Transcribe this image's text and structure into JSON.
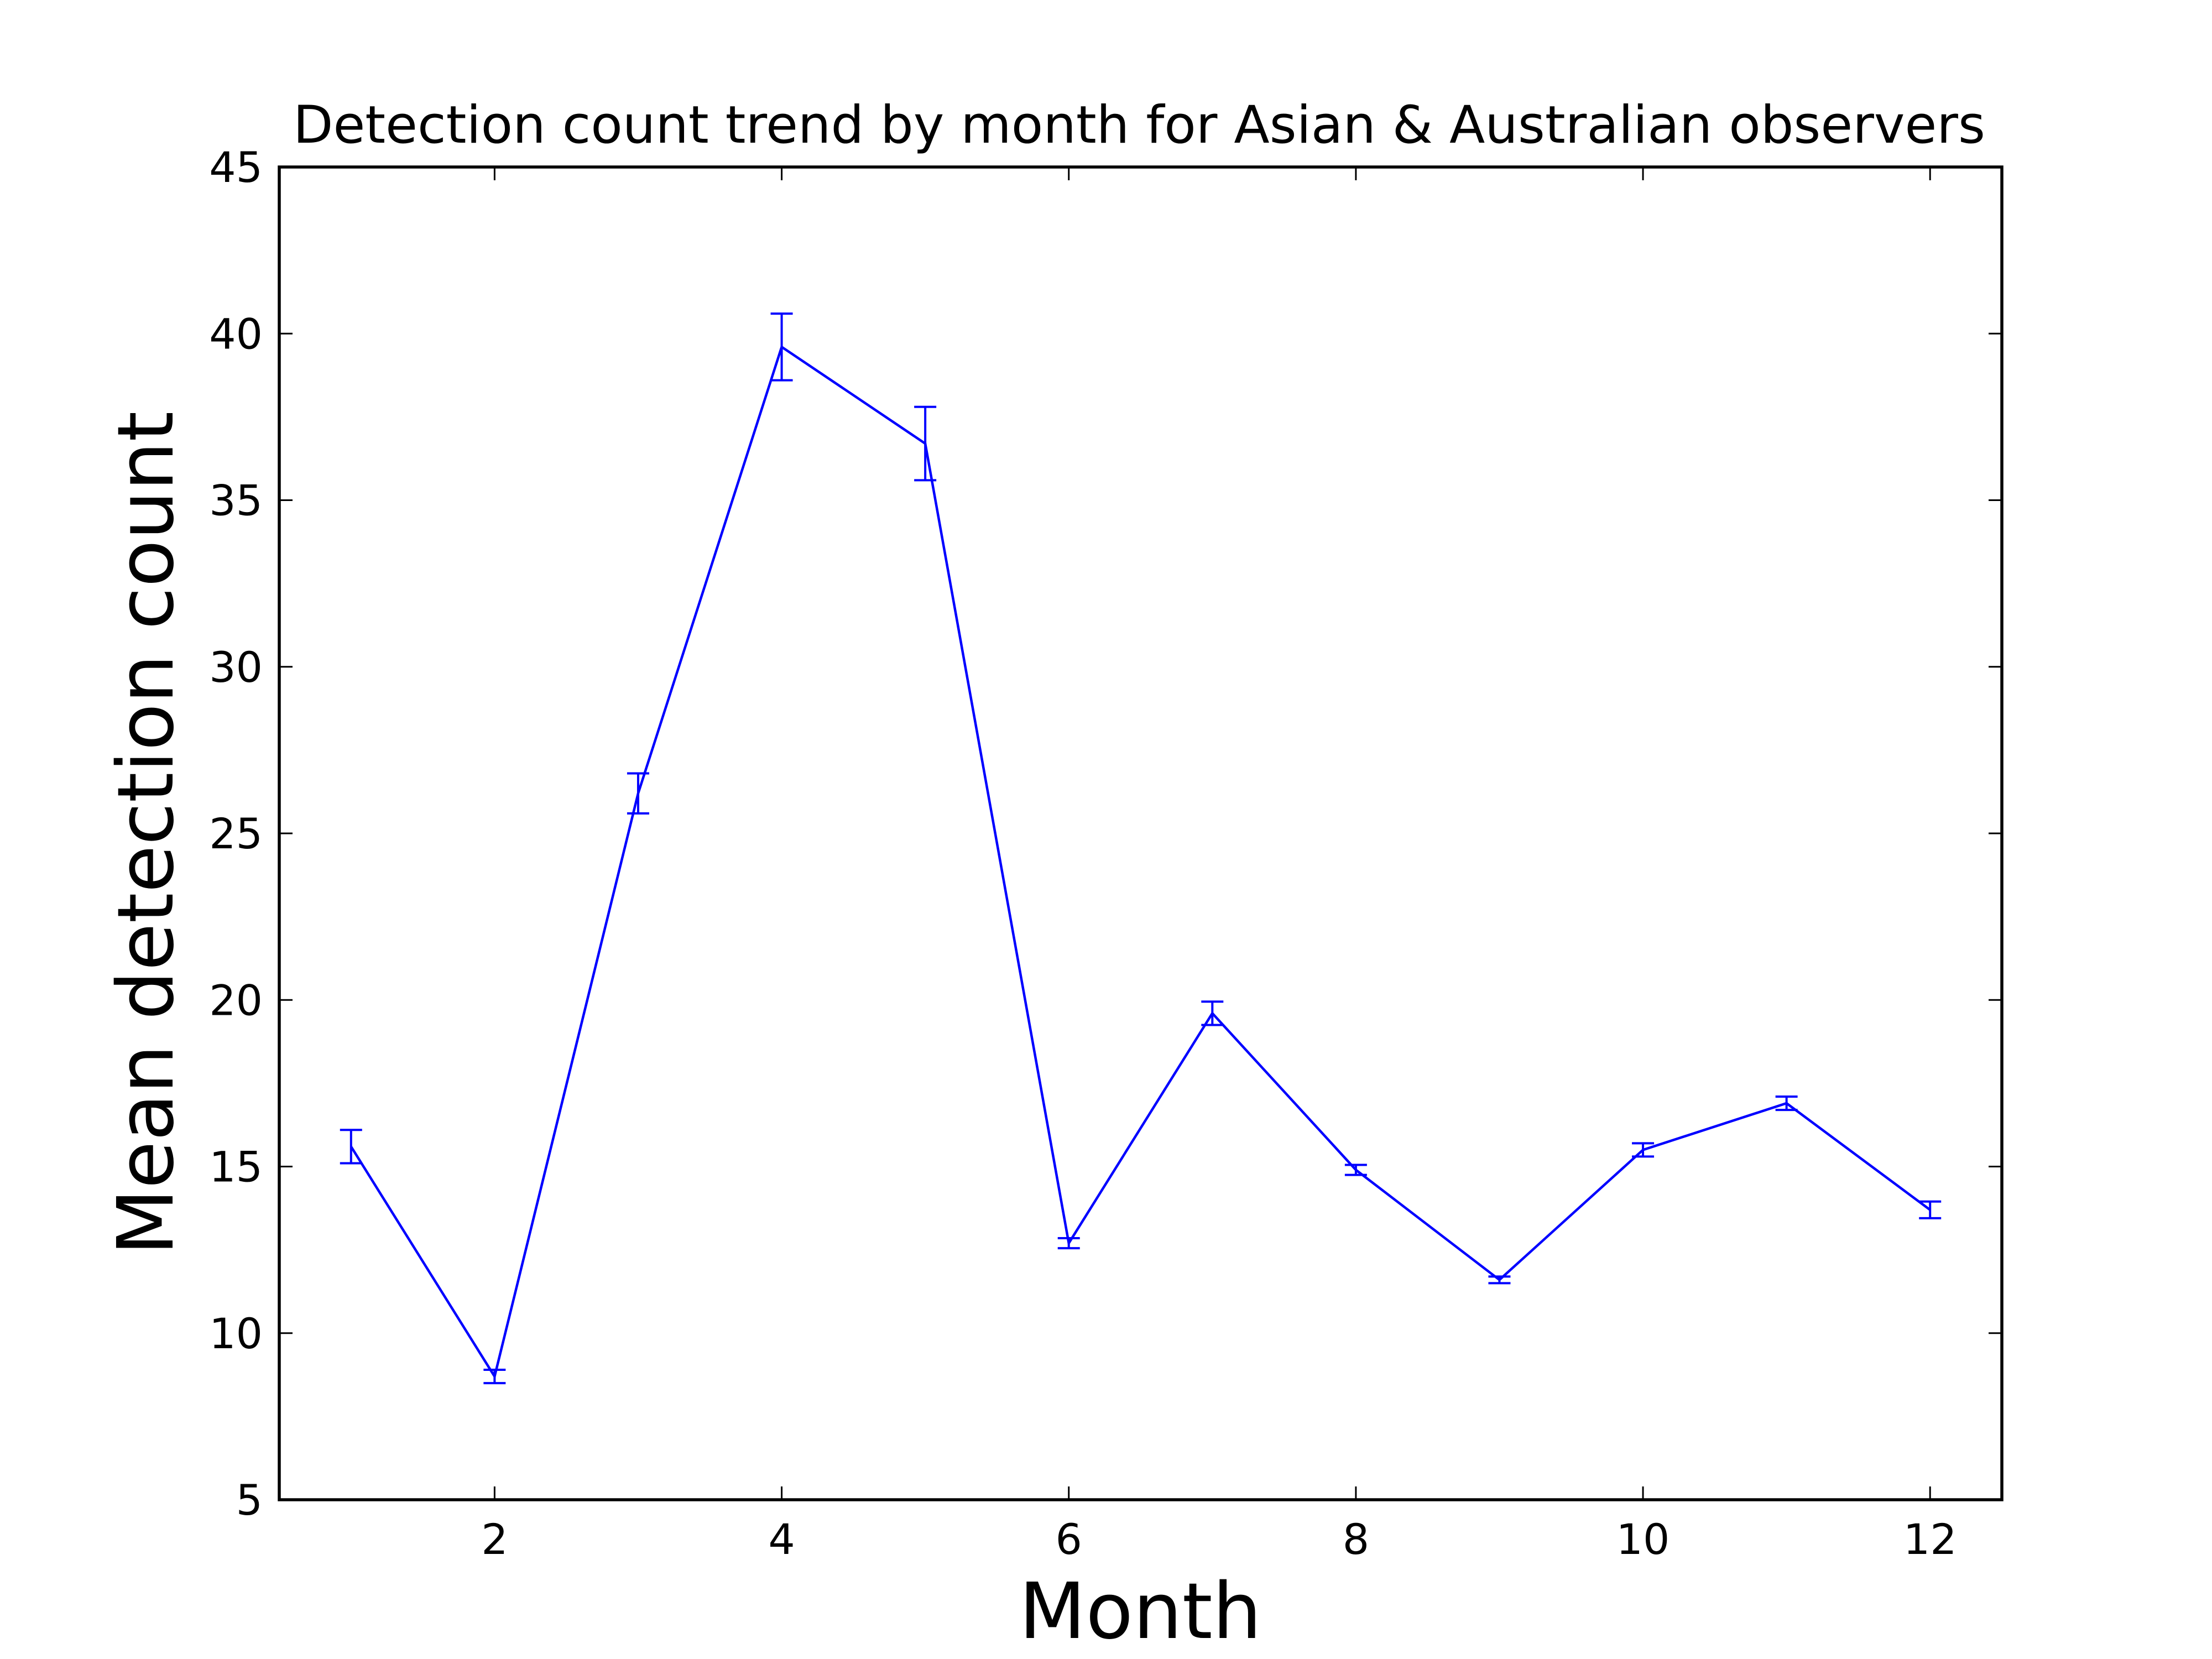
{
  "chart_data": {
    "type": "line",
    "title": "Detection count trend by month for Asian & Australian observers",
    "xlabel": "Month",
    "ylabel": "Mean detection count",
    "xlim": [
      0.5,
      12.5
    ],
    "ylim": [
      5,
      45
    ],
    "x_ticks": [
      2,
      4,
      6,
      8,
      10,
      12
    ],
    "x_tick_labels": [
      "2",
      "4",
      "6",
      "8",
      "10",
      "12"
    ],
    "y_ticks": [
      5,
      10,
      15,
      20,
      25,
      30,
      35,
      40,
      45
    ],
    "y_tick_labels": [
      "5",
      "10",
      "15",
      "20",
      "25",
      "30",
      "35",
      "40",
      "45"
    ],
    "grid": false,
    "legend": "none",
    "series": [
      {
        "color": "#0000ff",
        "x": [
          1,
          2,
          3,
          4,
          5,
          6,
          7,
          8,
          9,
          10,
          11,
          12
        ],
        "y": [
          15.6,
          8.7,
          26.2,
          39.6,
          36.7,
          12.7,
          19.6,
          14.9,
          11.6,
          15.5,
          16.9,
          13.7
        ],
        "error": [
          0.5,
          0.2,
          0.6,
          1.0,
          1.1,
          0.15,
          0.35,
          0.15,
          0.1,
          0.2,
          0.2,
          0.25
        ]
      }
    ]
  }
}
